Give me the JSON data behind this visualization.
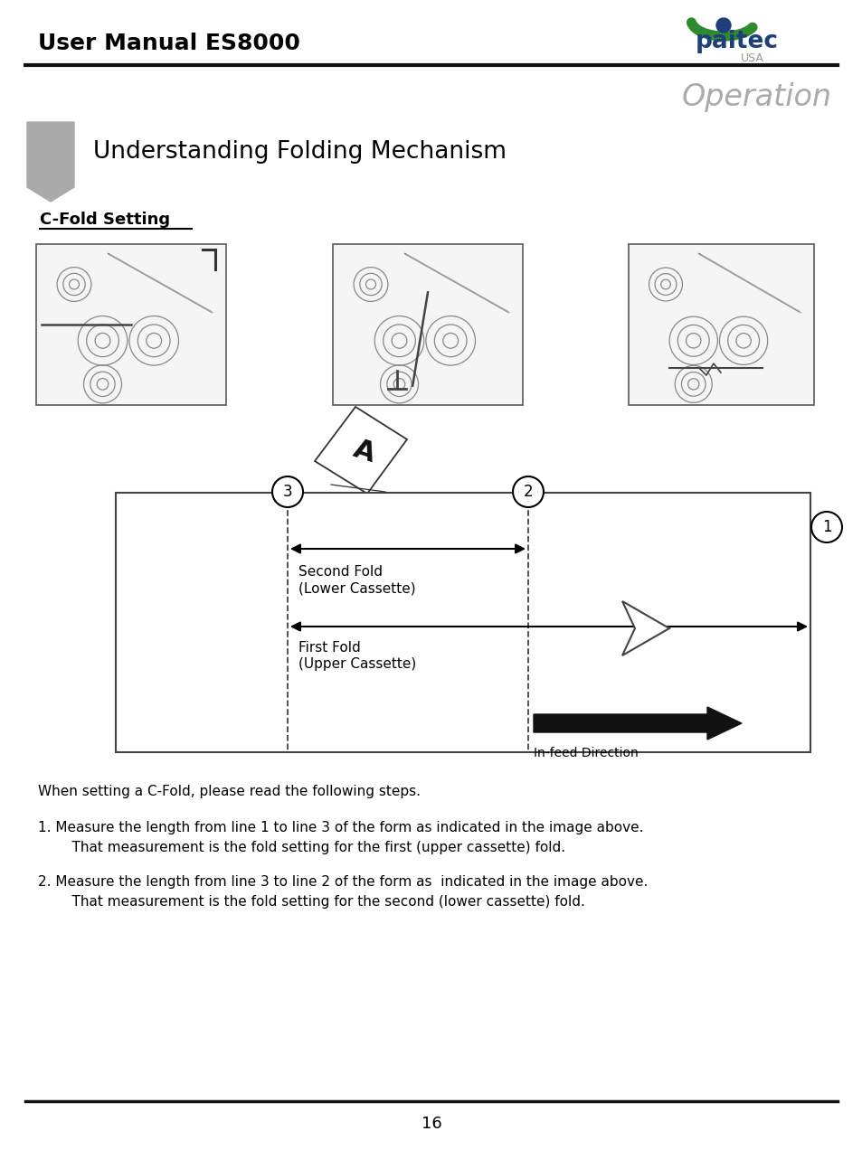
{
  "title": "User Manual ES8000",
  "operation_text": "Operation",
  "section_title": "Understanding Folding Mechanism",
  "subsection_title": "C-Fold Setting",
  "line1_text": "When setting a C-Fold, please read the following steps.",
  "step1_line1": "1. Measure the length from line 1 to line 3 of the form as indicated in the image above.",
  "step1_line2": "    That measurement is the fold setting for the first (upper cassette) fold.",
  "step2_line1": "2. Measure the length from line 3 to line 2 of the form as  indicated in the image above.",
  "step2_line2": "    That measurement is the fold setting for the second (lower cassette) fold.",
  "page_number": "16",
  "second_fold_line1": "Second Fold",
  "second_fold_line2": "(Lower Cassette)",
  "first_fold_line1": "First Fold",
  "first_fold_line2": "(Upper Cassette)",
  "infeed_label": "In-feed Direction",
  "bg_color": "#ffffff",
  "text_color": "#000000",
  "gray_color": "#999999",
  "dark_color": "#333333"
}
